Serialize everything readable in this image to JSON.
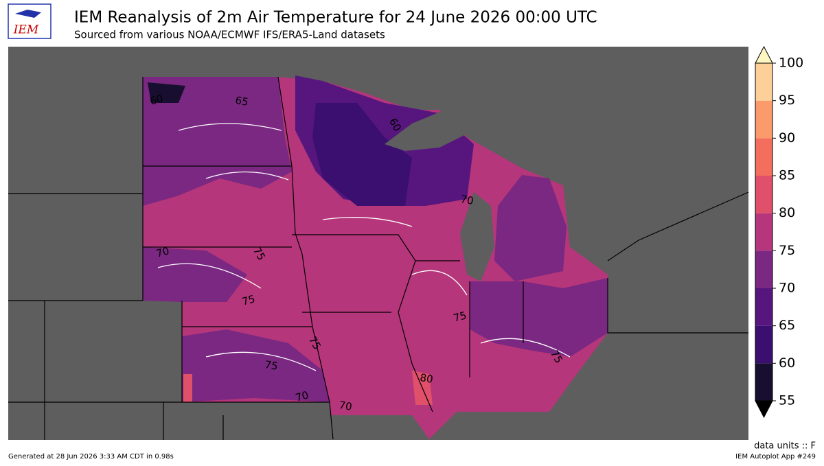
{
  "header": {
    "title": "IEM Reanalysis of 2m Air Temperature for 24 June 2026 00:00 UTC",
    "subtitle": "Sourced from various NOAA/ECMWF IFS/ERA5-Land datasets",
    "logo_text": "IEM"
  },
  "colorbar": {
    "lim": [
      55,
      100
    ],
    "ticks": [
      55,
      60,
      65,
      70,
      75,
      80,
      85,
      90,
      95,
      100
    ],
    "colors": [
      "#180f30",
      "#3b0f6f",
      "#56167e",
      "#7a2882",
      "#b5367a",
      "#e0506a",
      "#f36e5c",
      "#fb9b6c",
      "#fdd09a"
    ],
    "over_color": "#fcf6c0",
    "under_color": "#000000"
  },
  "map": {
    "contour_labels": [
      60,
      65,
      60,
      70,
      70,
      75,
      75,
      75,
      75,
      75,
      80,
      75,
      70,
      70
    ]
  },
  "footer": {
    "units": "data units :: F",
    "generated": "Generated at 28 Jun 2026 3:33 AM CDT in 0.98s",
    "app": "IEM Autoplot App #249"
  }
}
